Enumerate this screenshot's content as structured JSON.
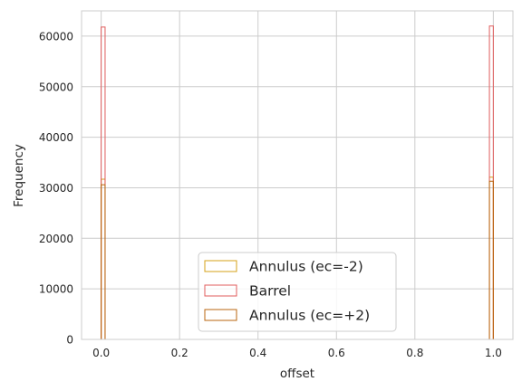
{
  "chart_data": {
    "type": "bar",
    "subtype": "step-histogram",
    "title": "",
    "xlabel": "offset",
    "ylabel": "Frequency",
    "xlim": [
      -0.05,
      1.05
    ],
    "ylim": [
      0,
      65000
    ],
    "xticks": [
      0.0,
      0.2,
      0.4,
      0.6,
      0.8,
      1.0
    ],
    "xtick_labels": [
      "0.0",
      "0.2",
      "0.4",
      "0.6",
      "0.8",
      "1.0"
    ],
    "yticks": [
      0,
      10000,
      20000,
      30000,
      40000,
      50000,
      60000
    ],
    "ytick_labels": [
      "0",
      "10000",
      "20000",
      "30000",
      "40000",
      "50000",
      "60000"
    ],
    "grid": true,
    "legend_position": "lower center",
    "bin_width": 0.01,
    "bin_edges": [
      0.0,
      0.01,
      0.99,
      1.0
    ],
    "series": [
      {
        "name": "Annulus (ec=-2)",
        "color": "#d4a017",
        "values": [
          31700,
          0,
          32100
        ]
      },
      {
        "name": "Barrel",
        "color": "#e05c5c",
        "values": [
          61800,
          0,
          62000
        ]
      },
      {
        "name": "Annulus (ec=+2)",
        "color": "#b8650f",
        "values": [
          30600,
          0,
          31300
        ]
      }
    ]
  }
}
